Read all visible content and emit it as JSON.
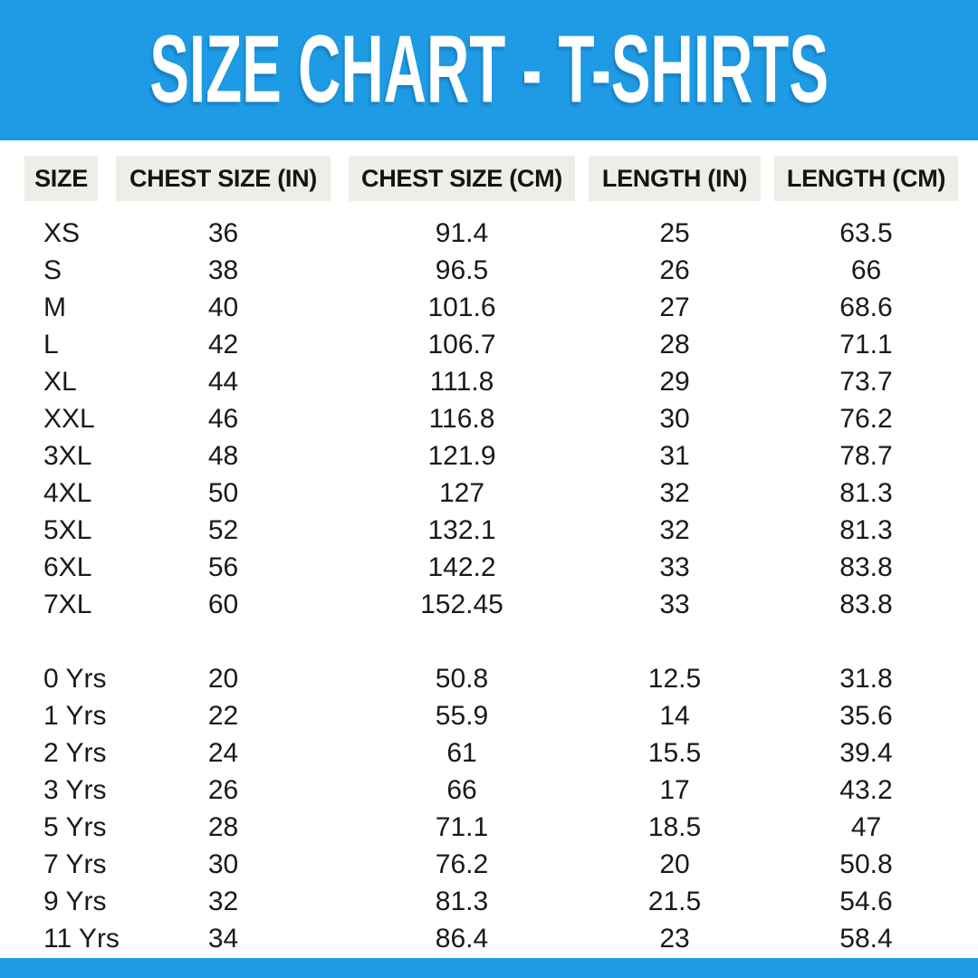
{
  "chart_data": {
    "type": "table",
    "title": "SIZE CHART - T-SHIRTS",
    "columns": [
      "SIZE",
      "CHEST SIZE (IN)",
      "CHEST SIZE (CM)",
      "LENGTH (IN)",
      "LENGTH (CM)"
    ],
    "groups": [
      {
        "name": "adult-sizes",
        "rows": [
          [
            "XS",
            "36",
            "91.4",
            "25",
            "63.5"
          ],
          [
            "S",
            "38",
            "96.5",
            "26",
            "66"
          ],
          [
            "M",
            "40",
            "101.6",
            "27",
            "68.6"
          ],
          [
            "L",
            "42",
            "106.7",
            "28",
            "71.1"
          ],
          [
            "XL",
            "44",
            "111.8",
            "29",
            "73.7"
          ],
          [
            "XXL",
            "46",
            "116.8",
            "30",
            "76.2"
          ],
          [
            "3XL",
            "48",
            "121.9",
            "31",
            "78.7"
          ],
          [
            "4XL",
            "50",
            "127",
            "32",
            "81.3"
          ],
          [
            "5XL",
            "52",
            "132.1",
            "32",
            "81.3"
          ],
          [
            "6XL",
            "56",
            "142.2",
            "33",
            "83.8"
          ],
          [
            "7XL",
            "60",
            "152.45",
            "33",
            "83.8"
          ]
        ]
      },
      {
        "name": "kids-sizes",
        "rows": [
          [
            "0 Yrs",
            "20",
            "50.8",
            "12.5",
            "31.8"
          ],
          [
            "1 Yrs",
            "22",
            "55.9",
            "14",
            "35.6"
          ],
          [
            "2 Yrs",
            "24",
            "61",
            "15.5",
            "39.4"
          ],
          [
            "3 Yrs",
            "26",
            "66",
            "17",
            "43.2"
          ],
          [
            "5 Yrs",
            "28",
            "71.1",
            "18.5",
            "47"
          ],
          [
            "7 Yrs",
            "30",
            "76.2",
            "20",
            "50.8"
          ],
          [
            "9 Yrs",
            "32",
            "81.3",
            "21.5",
            "54.6"
          ],
          [
            "11 Yrs",
            "34",
            "86.4",
            "23",
            "58.4"
          ]
        ]
      }
    ],
    "layout": {
      "legend": "none",
      "grid": "off"
    }
  },
  "colors": {
    "accent_blue": "#1E9BE4",
    "header_cell_bg": "#EFEDE7",
    "title_text": "#FFFFFF",
    "body_text": "#1A1A1A"
  }
}
